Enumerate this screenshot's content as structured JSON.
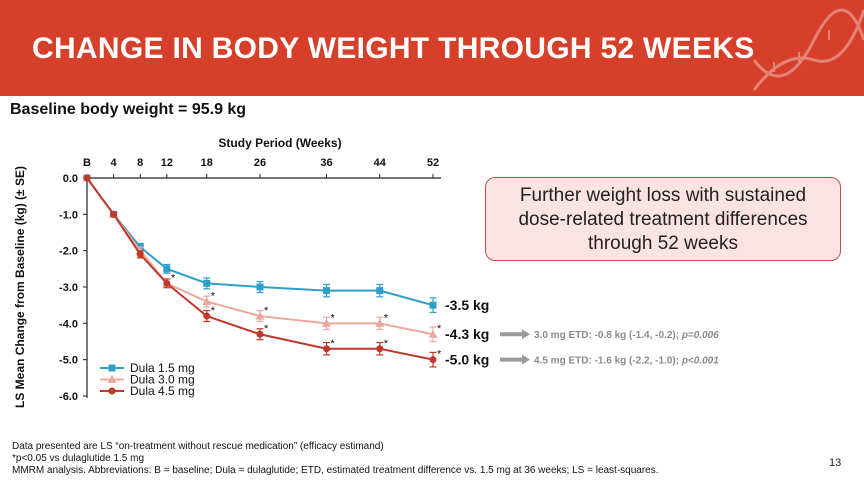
{
  "slide": {
    "title": "CHANGE IN BODY WEIGHT THROUGH 52 WEEKS",
    "baseline_text": "Baseline body weight = 95.9 kg",
    "callout": [
      "Further weight loss with sustained",
      "dose-related treatment differences",
      "through 52 weeks"
    ],
    "footnotes": [
      "Data presented are LS “on-treatment without rescue medication” (efficacy estimand)",
      "*p<0.05 vs dulaglutide 1.5 mg",
      "MMRM analysis. Abbreviations: B = baseline; Dula = dulaglutide; ETD, estimated treatment difference vs. 1.5 mg at 36 weeks; LS = least-squares."
    ],
    "page_number": "13",
    "theme_color": "#d6402b"
  },
  "chart_data": {
    "type": "line",
    "xlabel": "Study Period (Weeks)",
    "ylabel": "LS Mean Change from Baseline (kg) (± SE)",
    "x": [
      0,
      4,
      8,
      12,
      18,
      26,
      36,
      44,
      52
    ],
    "xtick_labels": [
      "B",
      "4",
      "8",
      "12",
      "18",
      "26",
      "36",
      "44",
      "52"
    ],
    "x_axis_position": "top",
    "ylim": [
      -6.0,
      0.0
    ],
    "yticks": [
      0.0,
      -1.0,
      -2.0,
      -3.0,
      -4.0,
      -5.0,
      -6.0
    ],
    "ytick_labels": [
      "0.0",
      "-1.0",
      "-2.0",
      "-3.0",
      "-4.0",
      "-5.0",
      "-6.0"
    ],
    "legend_position": "bottom-left",
    "series": [
      {
        "name": "Dula 1.5 mg",
        "color": "#2e9ec9",
        "marker": "square",
        "values": [
          0.0,
          -1.0,
          -1.9,
          -2.5,
          -2.9,
          -3.0,
          -3.1,
          -3.1,
          -3.5
        ],
        "se": [
          0,
          0.05,
          0.1,
          0.12,
          0.15,
          0.15,
          0.17,
          0.17,
          0.2
        ],
        "significant": [
          false,
          false,
          false,
          false,
          false,
          false,
          false,
          false,
          false
        ],
        "end_label": "-3.5 kg"
      },
      {
        "name": "Dula 3.0 mg",
        "color": "#eba99c",
        "marker": "triangle",
        "values": [
          0.0,
          -1.0,
          -2.0,
          -2.9,
          -3.4,
          -3.8,
          -4.0,
          -4.0,
          -4.3
        ],
        "se": [
          0,
          0.05,
          0.1,
          0.12,
          0.15,
          0.15,
          0.17,
          0.17,
          0.2
        ],
        "significant": [
          false,
          false,
          false,
          true,
          true,
          true,
          true,
          true,
          true
        ],
        "end_label": "-4.3 kg"
      },
      {
        "name": "Dula 4.5 mg",
        "color": "#c0392b",
        "marker": "circle",
        "values": [
          0.0,
          -1.0,
          -2.1,
          -2.9,
          -3.8,
          -4.3,
          -4.7,
          -4.7,
          -5.0
        ],
        "se": [
          0,
          0.05,
          0.1,
          0.12,
          0.15,
          0.15,
          0.17,
          0.17,
          0.2
        ],
        "significant": [
          false,
          false,
          false,
          false,
          true,
          true,
          true,
          true,
          true
        ],
        "end_label": "-5.0 kg"
      }
    ],
    "annotations": [
      {
        "series": "Dula 3.0 mg",
        "text": "3.0 mg ETD: -0.8 kg (-1.4, -0.2);",
        "p_value": "p=0.006"
      },
      {
        "series": "Dula 4.5 mg",
        "text": "4.5 mg ETD: -1.6 kg (-2.2, -1.0);",
        "p_value": "p<0.001"
      }
    ]
  }
}
